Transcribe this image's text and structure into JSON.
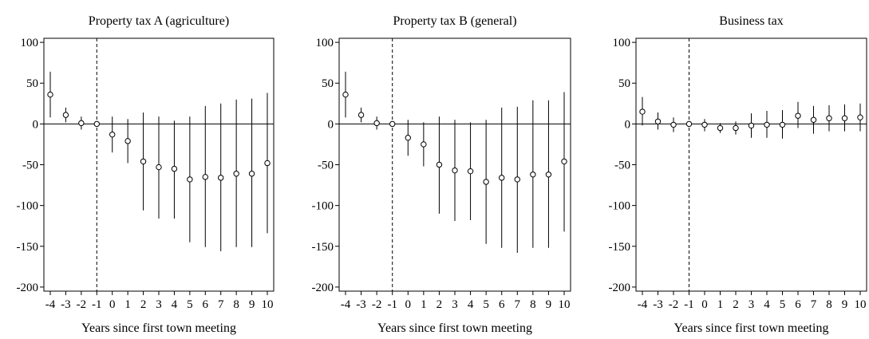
{
  "chart_data": [
    {
      "type": "scatter",
      "title": "Property tax A (agriculture)",
      "xlabel": "Years since first town meeting",
      "ylabel": "",
      "xticks": [
        -4,
        -3,
        -2,
        -1,
        0,
        1,
        2,
        3,
        4,
        5,
        6,
        7,
        8,
        9,
        10
      ],
      "yticks": [
        100,
        50,
        0,
        -50,
        -100,
        -150,
        -200
      ],
      "ylim": [
        -205,
        105
      ],
      "reference_x": -1,
      "reference_y": 0,
      "points": [
        {
          "x": -4,
          "y": 36,
          "lo": 8,
          "hi": 64
        },
        {
          "x": -3,
          "y": 11,
          "lo": 2,
          "hi": 20
        },
        {
          "x": -2,
          "y": 1,
          "lo": -7,
          "hi": 9
        },
        {
          "x": -1,
          "y": 0,
          "lo": 0,
          "hi": 0
        },
        {
          "x": 0,
          "y": -13,
          "lo": -35,
          "hi": 9
        },
        {
          "x": 1,
          "y": -21,
          "lo": -48,
          "hi": 6
        },
        {
          "x": 2,
          "y": -46,
          "lo": -106,
          "hi": 14
        },
        {
          "x": 3,
          "y": -53,
          "lo": -116,
          "hi": 9
        },
        {
          "x": 4,
          "y": -55,
          "lo": -116,
          "hi": 4
        },
        {
          "x": 5,
          "y": -68,
          "lo": -145,
          "hi": 9
        },
        {
          "x": 6,
          "y": -65,
          "lo": -151,
          "hi": 22
        },
        {
          "x": 7,
          "y": -66,
          "lo": -156,
          "hi": 25
        },
        {
          "x": 8,
          "y": -61,
          "lo": -151,
          "hi": 30
        },
        {
          "x": 9,
          "y": -61,
          "lo": -151,
          "hi": 31
        },
        {
          "x": 10,
          "y": -48,
          "lo": -134,
          "hi": 38
        }
      ]
    },
    {
      "type": "scatter",
      "title": "Property tax B (general)",
      "xlabel": "Years since first town meeting",
      "ylabel": "",
      "xticks": [
        -4,
        -3,
        -2,
        -1,
        0,
        1,
        2,
        3,
        4,
        5,
        6,
        7,
        8,
        9,
        10
      ],
      "yticks": [
        100,
        50,
        0,
        -50,
        -100,
        -150,
        -200
      ],
      "ylim": [
        -205,
        105
      ],
      "reference_x": -1,
      "reference_y": 0,
      "points": [
        {
          "x": -4,
          "y": 36,
          "lo": 8,
          "hi": 64
        },
        {
          "x": -3,
          "y": 11,
          "lo": 2,
          "hi": 20
        },
        {
          "x": -2,
          "y": 1,
          "lo": -7,
          "hi": 9
        },
        {
          "x": -1,
          "y": 0,
          "lo": 0,
          "hi": 0
        },
        {
          "x": 0,
          "y": -17,
          "lo": -39,
          "hi": 5
        },
        {
          "x": 1,
          "y": -25,
          "lo": -52,
          "hi": 2
        },
        {
          "x": 2,
          "y": -50,
          "lo": -110,
          "hi": 9
        },
        {
          "x": 3,
          "y": -57,
          "lo": -119,
          "hi": 5
        },
        {
          "x": 4,
          "y": -58,
          "lo": -118,
          "hi": 2
        },
        {
          "x": 5,
          "y": -71,
          "lo": -147,
          "hi": 5
        },
        {
          "x": 6,
          "y": -66,
          "lo": -152,
          "hi": 20
        },
        {
          "x": 7,
          "y": -68,
          "lo": -158,
          "hi": 21
        },
        {
          "x": 8,
          "y": -62,
          "lo": -152,
          "hi": 29
        },
        {
          "x": 9,
          "y": -62,
          "lo": -152,
          "hi": 29
        },
        {
          "x": 10,
          "y": -46,
          "lo": -132,
          "hi": 39
        }
      ]
    },
    {
      "type": "scatter",
      "title": "Business tax",
      "xlabel": "Years since first town meeting",
      "ylabel": "",
      "xticks": [
        -4,
        -3,
        -2,
        -1,
        0,
        1,
        2,
        3,
        4,
        5,
        6,
        7,
        8,
        9,
        10
      ],
      "yticks": [
        100,
        50,
        0,
        -50,
        -100,
        -150,
        -200
      ],
      "ylim": [
        -205,
        105
      ],
      "reference_x": -1,
      "reference_y": 0,
      "points": [
        {
          "x": -4,
          "y": 15,
          "lo": -2,
          "hi": 33
        },
        {
          "x": -3,
          "y": 3,
          "lo": -7,
          "hi": 14
        },
        {
          "x": -2,
          "y": -1,
          "lo": -10,
          "hi": 8
        },
        {
          "x": -1,
          "y": 0,
          "lo": 0,
          "hi": 0
        },
        {
          "x": 0,
          "y": -1,
          "lo": -9,
          "hi": 6
        },
        {
          "x": 1,
          "y": -5,
          "lo": -11,
          "hi": 1
        },
        {
          "x": 2,
          "y": -5,
          "lo": -13,
          "hi": 3
        },
        {
          "x": 3,
          "y": -2,
          "lo": -17,
          "hi": 13
        },
        {
          "x": 4,
          "y": -1,
          "lo": -17,
          "hi": 16
        },
        {
          "x": 5,
          "y": -1,
          "lo": -18,
          "hi": 17
        },
        {
          "x": 6,
          "y": 10,
          "lo": -5,
          "hi": 27
        },
        {
          "x": 7,
          "y": 5,
          "lo": -12,
          "hi": 22
        },
        {
          "x": 8,
          "y": 7,
          "lo": -9,
          "hi": 23
        },
        {
          "x": 9,
          "y": 7,
          "lo": -9,
          "hi": 24
        },
        {
          "x": 10,
          "y": 8,
          "lo": -9,
          "hi": 25
        }
      ]
    }
  ]
}
